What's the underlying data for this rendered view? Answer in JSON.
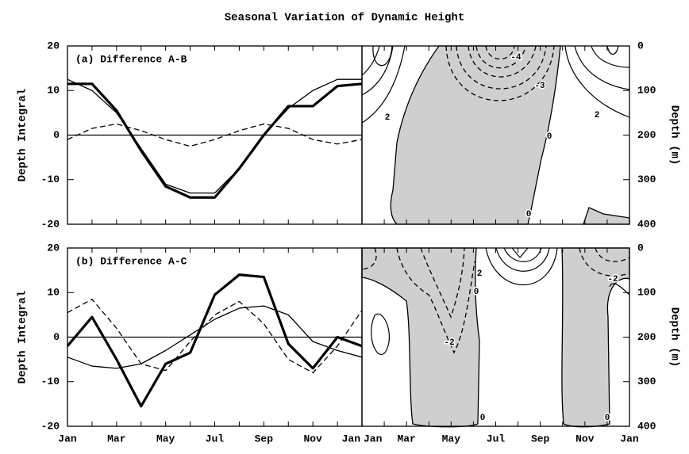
{
  "title": "Seasonal Variation of Dynamic Height",
  "chart_data": [
    {
      "type": "line",
      "annotation": "(a) Difference A-B",
      "y_label": "Depth Integral",
      "ylim": [
        -20,
        20
      ],
      "yticks": [
        -20,
        -10,
        0,
        10,
        20
      ],
      "series": [
        {
          "style": "thick",
          "color": "#000000",
          "values": [
            11.5,
            11.5,
            5.5,
            -3.5,
            -11.5,
            -14,
            -14,
            -7.5,
            0,
            6.5,
            6.5,
            11,
            11.5
          ]
        },
        {
          "style": "thin",
          "color": "#000000",
          "values": [
            12.5,
            10,
            5,
            -3,
            -11,
            -13,
            -13,
            -7.5,
            0,
            6,
            10,
            12.5,
            12.5
          ]
        },
        {
          "style": "dashed",
          "color": "#000000",
          "values": [
            -1,
            1.5,
            2.5,
            1,
            -1,
            -2.5,
            -1,
            1,
            2.5,
            1.5,
            -1,
            -2,
            -1
          ]
        }
      ]
    },
    {
      "type": "contour",
      "y_label": "Depth (m)",
      "ylim": [
        400,
        0
      ],
      "yticks": [
        0,
        100,
        200,
        300,
        400
      ],
      "contour_labels": [
        -4,
        -3,
        2,
        2,
        0,
        0
      ],
      "shade_color": "#cfcfcf"
    },
    {
      "type": "line",
      "annotation": "(b) Difference A-C",
      "y_label": "Depth Integral",
      "categories": [
        "Jan",
        null,
        "Mar",
        null,
        "May",
        null,
        "Jul",
        null,
        "Sep",
        null,
        "Nov",
        null,
        "Jan"
      ],
      "ylim": [
        -20,
        20
      ],
      "yticks": [
        -20,
        -10,
        0,
        10,
        20
      ],
      "series": [
        {
          "style": "thick",
          "color": "#000000",
          "values": [
            -2,
            4.5,
            -5,
            -15.5,
            -6,
            -3.5,
            9.5,
            14,
            13.5,
            -1.5,
            -7,
            0,
            -2
          ]
        },
        {
          "style": "thin",
          "color": "#000000",
          "values": [
            -4.5,
            -6.5,
            -7,
            -6,
            -3,
            0.5,
            4,
            6.5,
            7,
            5,
            -1,
            -3,
            -4.5
          ]
        },
        {
          "style": "dashed",
          "color": "#000000",
          "values": [
            5.5,
            8.5,
            2,
            -6,
            -7.5,
            -1,
            5,
            8,
            3,
            -5,
            -8,
            -2,
            6
          ]
        }
      ]
    },
    {
      "type": "contour",
      "y_label": "Depth (m)",
      "categories": [
        "Jan",
        null,
        "Mar",
        null,
        "May",
        null,
        "Jul",
        null,
        "Sep",
        null,
        "Nov",
        null,
        "Jan"
      ],
      "ylim": [
        400,
        0
      ],
      "yticks": [
        0,
        100,
        200,
        300,
        400
      ],
      "contour_labels": [
        2,
        0,
        -2,
        -2,
        0,
        0
      ],
      "shade_color": "#cfcfcf"
    }
  ]
}
